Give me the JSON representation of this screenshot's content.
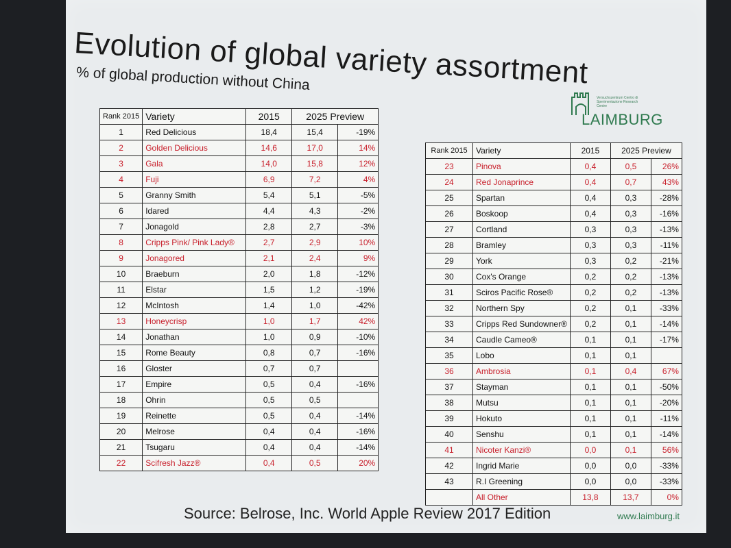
{
  "slide": {
    "title": "Evolution of global variety assortment",
    "subtitle": "% of global production without China",
    "logo_text": "LAIMBURG",
    "logo_small": "Versuchszentrum Centro di Sperimentazione Research Centre",
    "source": "Source: Belrose, Inc. World Apple Review  2017 Edition",
    "url": "www.laimburg.it"
  },
  "colors": {
    "highlight": "#c8202c",
    "brand": "#2f7a4f"
  },
  "left_table": {
    "headers": {
      "rank": "Rank 2015",
      "variety": "Variety",
      "y2015": "2015",
      "y2025": "2025 Preview"
    },
    "rows": [
      {
        "rank": "1",
        "variety": "Red Delicious",
        "v2015": "18,4",
        "v2025": "15,4",
        "change": "-19%",
        "highlight": false
      },
      {
        "rank": "2",
        "variety": "Golden Delicious",
        "v2015": "14,6",
        "v2025": "17,0",
        "change": "14%",
        "highlight": true
      },
      {
        "rank": "3",
        "variety": "Gala",
        "v2015": "14,0",
        "v2025": "15,8",
        "change": "12%",
        "highlight": true
      },
      {
        "rank": "4",
        "variety": "Fuji",
        "v2015": "6,9",
        "v2025": "7,2",
        "change": "4%",
        "highlight": true
      },
      {
        "rank": "5",
        "variety": "Granny Smith",
        "v2015": "5,4",
        "v2025": "5,1",
        "change": "-5%",
        "highlight": false
      },
      {
        "rank": "6",
        "variety": "Idared",
        "v2015": "4,4",
        "v2025": "4,3",
        "change": "-2%",
        "highlight": false
      },
      {
        "rank": "7",
        "variety": "Jonagold",
        "v2015": "2,8",
        "v2025": "2,7",
        "change": "-3%",
        "highlight": false
      },
      {
        "rank": "8",
        "variety": "Cripps Pink/ Pink Lady®",
        "v2015": "2,7",
        "v2025": "2,9",
        "change": "10%",
        "highlight": true
      },
      {
        "rank": "9",
        "variety": "Jonagored",
        "v2015": "2,1",
        "v2025": "2,4",
        "change": "9%",
        "highlight": true
      },
      {
        "rank": "10",
        "variety": "Braeburn",
        "v2015": "2,0",
        "v2025": "1,8",
        "change": "-12%",
        "highlight": false
      },
      {
        "rank": "11",
        "variety": "Elstar",
        "v2015": "1,5",
        "v2025": "1,2",
        "change": "-19%",
        "highlight": false
      },
      {
        "rank": "12",
        "variety": "McIntosh",
        "v2015": "1,4",
        "v2025": "1,0",
        "change": "-42%",
        "highlight": false
      },
      {
        "rank": "13",
        "variety": "Honeycrisp",
        "v2015": "1,0",
        "v2025": "1,7",
        "change": "42%",
        "highlight": true
      },
      {
        "rank": "14",
        "variety": "Jonathan",
        "v2015": "1,0",
        "v2025": "0,9",
        "change": "-10%",
        "highlight": false
      },
      {
        "rank": "15",
        "variety": "Rome Beauty",
        "v2015": "0,8",
        "v2025": "0,7",
        "change": "-16%",
        "highlight": false
      },
      {
        "rank": "16",
        "variety": "Gloster",
        "v2015": "0,7",
        "v2025": "0,7",
        "change": "",
        "highlight": false
      },
      {
        "rank": "17",
        "variety": "Empire",
        "v2015": "0,5",
        "v2025": "0,4",
        "change": "-16%",
        "highlight": false
      },
      {
        "rank": "18",
        "variety": "Ohrin",
        "v2015": "0,5",
        "v2025": "0,5",
        "change": "",
        "highlight": false
      },
      {
        "rank": "19",
        "variety": "Reinette",
        "v2015": "0,5",
        "v2025": "0,4",
        "change": "-14%",
        "highlight": false
      },
      {
        "rank": "20",
        "variety": "Melrose",
        "v2015": "0,4",
        "v2025": "0,4",
        "change": "-16%",
        "highlight": false
      },
      {
        "rank": "21",
        "variety": "Tsugaru",
        "v2015": "0,4",
        "v2025": "0,4",
        "change": "-14%",
        "highlight": false
      },
      {
        "rank": "22",
        "variety": "Scifresh Jazz®",
        "v2015": "0,4",
        "v2025": "0,5",
        "change": "20%",
        "highlight": true
      }
    ]
  },
  "right_table": {
    "headers": {
      "rank": "Rank 2015",
      "variety": "Variety",
      "y2015": "2015",
      "y2025": "2025 Preview"
    },
    "rows": [
      {
        "rank": "23",
        "variety": "Pinova",
        "v2015": "0,4",
        "v2025": "0,5",
        "change": "26%",
        "highlight": true
      },
      {
        "rank": "24",
        "variety": "Red Jonaprince",
        "v2015": "0,4",
        "v2025": "0,7",
        "change": "43%",
        "highlight": true
      },
      {
        "rank": "25",
        "variety": "Spartan",
        "v2015": "0,4",
        "v2025": "0,3",
        "change": "-28%",
        "highlight": false
      },
      {
        "rank": "26",
        "variety": "Boskoop",
        "v2015": "0,4",
        "v2025": "0,3",
        "change": "-16%",
        "highlight": false
      },
      {
        "rank": "27",
        "variety": "Cortland",
        "v2015": "0,3",
        "v2025": "0,3",
        "change": "-13%",
        "highlight": false
      },
      {
        "rank": "28",
        "variety": "Bramley",
        "v2015": "0,3",
        "v2025": "0,3",
        "change": "-11%",
        "highlight": false
      },
      {
        "rank": "29",
        "variety": "York",
        "v2015": "0,3",
        "v2025": "0,2",
        "change": "-21%",
        "highlight": false
      },
      {
        "rank": "30",
        "variety": "Cox's Orange",
        "v2015": "0,2",
        "v2025": "0,2",
        "change": "-13%",
        "highlight": false
      },
      {
        "rank": "31",
        "variety": "Sciros Pacific Rose®",
        "v2015": "0,2",
        "v2025": "0,2",
        "change": "-13%",
        "highlight": false
      },
      {
        "rank": "32",
        "variety": "Northern Spy",
        "v2015": "0,2",
        "v2025": "0,1",
        "change": "-33%",
        "highlight": false
      },
      {
        "rank": "33",
        "variety": "Cripps Red Sundowner®",
        "v2015": "0,2",
        "v2025": "0,1",
        "change": "-14%",
        "highlight": false
      },
      {
        "rank": "34",
        "variety": "Caudle Cameo®",
        "v2015": "0,1",
        "v2025": "0,1",
        "change": "-17%",
        "highlight": false
      },
      {
        "rank": "35",
        "variety": "Lobo",
        "v2015": "0,1",
        "v2025": "0,1",
        "change": "",
        "highlight": false
      },
      {
        "rank": "36",
        "variety": "Ambrosia",
        "v2015": "0,1",
        "v2025": "0,4",
        "change": "67%",
        "highlight": true
      },
      {
        "rank": "37",
        "variety": "Stayman",
        "v2015": "0,1",
        "v2025": "0,1",
        "change": "-50%",
        "highlight": false
      },
      {
        "rank": "38",
        "variety": "Mutsu",
        "v2015": "0,1",
        "v2025": "0,1",
        "change": "-20%",
        "highlight": false
      },
      {
        "rank": "39",
        "variety": "Hokuto",
        "v2015": "0,1",
        "v2025": "0,1",
        "change": "-11%",
        "highlight": false
      },
      {
        "rank": "40",
        "variety": "Senshu",
        "v2015": "0,1",
        "v2025": "0,1",
        "change": "-14%",
        "highlight": false
      },
      {
        "rank": "41",
        "variety": "Nicoter Kanzi®",
        "v2015": "0,0",
        "v2025": "0,1",
        "change": "56%",
        "highlight": true
      },
      {
        "rank": "42",
        "variety": "Ingrid Marie",
        "v2015": "0,0",
        "v2025": "0,0",
        "change": "-33%",
        "highlight": false
      },
      {
        "rank": "43",
        "variety": "R.I Greening",
        "v2015": "0,0",
        "v2025": "0,0",
        "change": "-33%",
        "highlight": false
      },
      {
        "rank": "",
        "variety": "All Other",
        "v2015": "13,8",
        "v2025": "13,7",
        "change": "0%",
        "highlight": true
      }
    ]
  }
}
